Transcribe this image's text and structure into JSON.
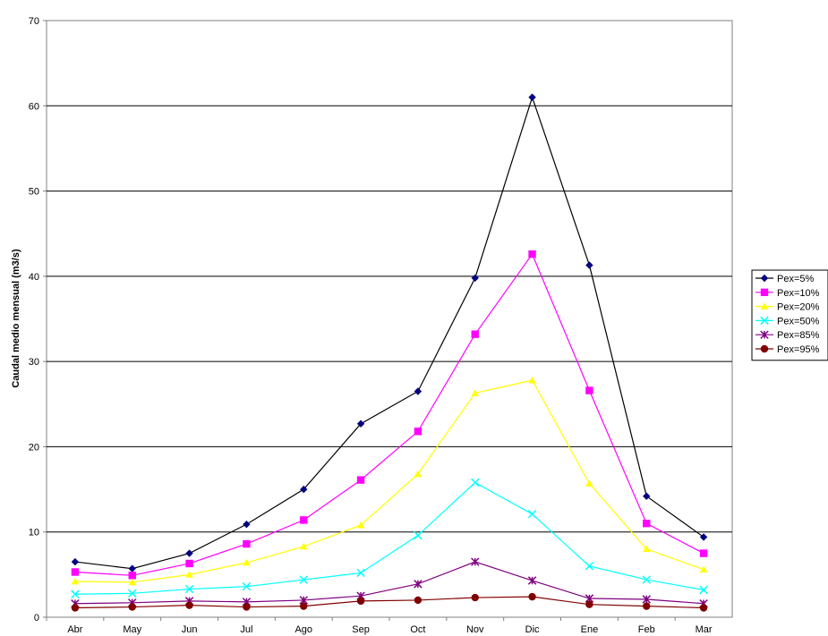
{
  "chart_data": {
    "type": "line",
    "title": "",
    "xlabel": "",
    "ylabel": "Caudal medio mensual (m3/s)",
    "categories": [
      "Abr",
      "May",
      "Jun",
      "Jul",
      "Ago",
      "Sep",
      "Oct",
      "Nov",
      "Dic",
      "Ene",
      "Feb",
      "Mar"
    ],
    "ylim": [
      0,
      70
    ],
    "yticks": [
      0,
      10,
      20,
      30,
      40,
      50,
      60,
      70
    ],
    "grid": "horizontal",
    "legend_position": "right",
    "series": [
      {
        "name": "Pex=5%",
        "color": "#000080",
        "marker": "diamond",
        "line_color": "#000000",
        "values": [
          6.5,
          5.7,
          7.5,
          10.9,
          15.0,
          22.7,
          26.5,
          39.8,
          61.0,
          41.3,
          14.2,
          9.4
        ]
      },
      {
        "name": "Pex=10%",
        "color": "#ff00ff",
        "marker": "square",
        "line_color": "#ff00ff",
        "values": [
          5.3,
          4.9,
          6.3,
          8.6,
          11.4,
          16.1,
          21.8,
          33.2,
          42.6,
          26.6,
          11.0,
          7.5
        ]
      },
      {
        "name": "Pex=20%",
        "color": "#ffff00",
        "marker": "triangle",
        "line_color": "#ffff00",
        "values": [
          4.2,
          4.1,
          5.0,
          6.4,
          8.3,
          10.8,
          16.8,
          26.3,
          27.8,
          15.7,
          8.0,
          5.6
        ]
      },
      {
        "name": "Pex=50%",
        "color": "#00ffff",
        "marker": "x",
        "line_color": "#00ffff",
        "values": [
          2.7,
          2.8,
          3.3,
          3.6,
          4.4,
          5.2,
          9.6,
          15.8,
          12.1,
          6.0,
          4.4,
          3.2
        ]
      },
      {
        "name": "Pex=85%",
        "color": "#800080",
        "marker": "star",
        "line_color": "#800080",
        "values": [
          1.6,
          1.7,
          1.9,
          1.8,
          2.0,
          2.5,
          3.9,
          6.5,
          4.3,
          2.2,
          2.1,
          1.6
        ]
      },
      {
        "name": "Pex=95%",
        "color": "#800000",
        "marker": "circle",
        "line_color": "#800000",
        "values": [
          1.1,
          1.2,
          1.4,
          1.2,
          1.3,
          1.9,
          2.0,
          2.3,
          2.4,
          1.5,
          1.3,
          1.1
        ]
      }
    ]
  }
}
